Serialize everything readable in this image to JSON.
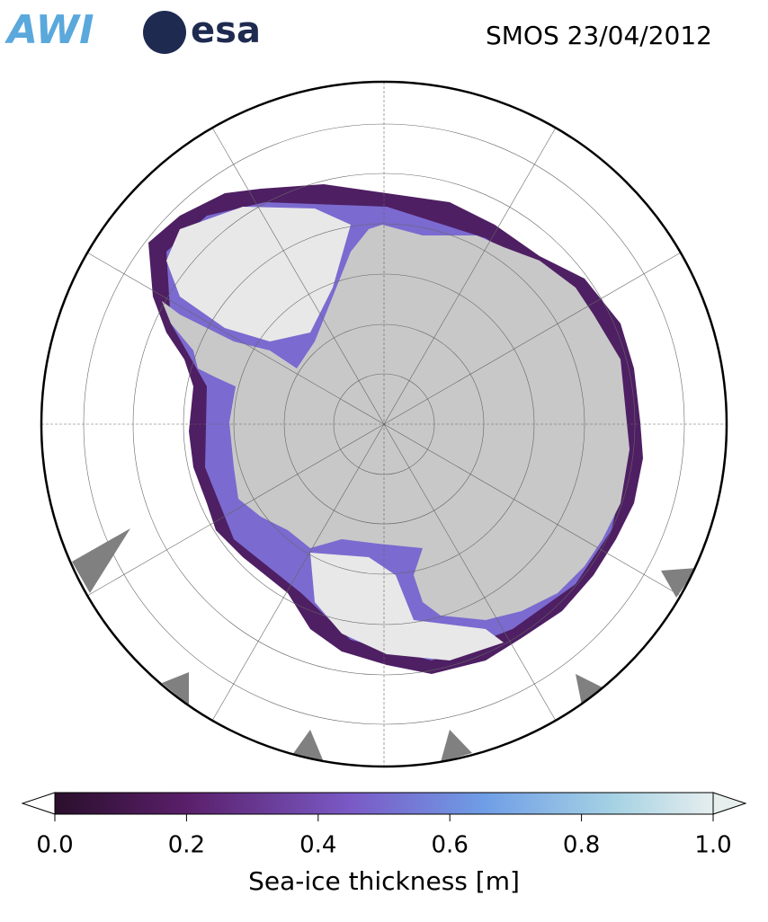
{
  "header": {
    "logos": [
      "AWI",
      "esa"
    ],
    "title": "SMOS 23/04/2012"
  },
  "colorbar": {
    "label": "Sea-ice thickness [m]",
    "lim": [
      0,
      1
    ],
    "ticks": [
      {
        "value": 0,
        "label": "0.0"
      },
      {
        "value": 0.2,
        "label": "0.2"
      },
      {
        "value": 0.4,
        "label": "0.4"
      },
      {
        "value": 0.6,
        "label": "0.6"
      },
      {
        "value": 0.8,
        "label": "0.8"
      },
      {
        "value": 1,
        "label": "1.0"
      }
    ]
  }
}
